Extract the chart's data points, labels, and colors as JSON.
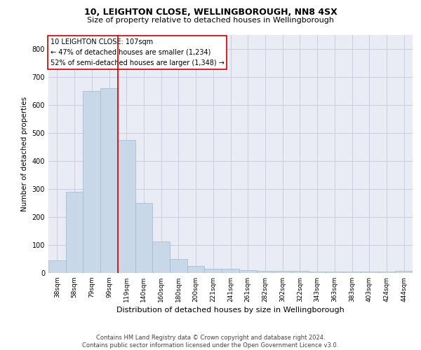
{
  "title1": "10, LEIGHTON CLOSE, WELLINGBOROUGH, NN8 4SX",
  "title2": "Size of property relative to detached houses in Wellingborough",
  "xlabel": "Distribution of detached houses by size in Wellingborough",
  "ylabel": "Number of detached properties",
  "categories": [
    "38sqm",
    "58sqm",
    "79sqm",
    "99sqm",
    "119sqm",
    "140sqm",
    "160sqm",
    "180sqm",
    "200sqm",
    "221sqm",
    "241sqm",
    "261sqm",
    "282sqm",
    "302sqm",
    "322sqm",
    "343sqm",
    "363sqm",
    "383sqm",
    "403sqm",
    "424sqm",
    "444sqm"
  ],
  "values": [
    45,
    290,
    650,
    660,
    475,
    250,
    112,
    50,
    25,
    15,
    15,
    10,
    8,
    8,
    8,
    5,
    5,
    5,
    5,
    5,
    8
  ],
  "bar_color": "#c8d8e8",
  "bar_edgecolor": "#a0b8cc",
  "bar_linewidth": 0.5,
  "vline_color": "#cc0000",
  "vline_pos": 3.5,
  "annotation_text": "10 LEIGHTON CLOSE: 107sqm\n← 47% of detached houses are smaller (1,234)\n52% of semi-detached houses are larger (1,348) →",
  "annotation_box_edgecolor": "#cc0000",
  "annotation_box_facecolor": "white",
  "ylim": [
    0,
    850
  ],
  "yticks": [
    0,
    100,
    200,
    300,
    400,
    500,
    600,
    700,
    800
  ],
  "grid_color": "#ccccdd",
  "background_color": "#eaecf5",
  "footer_line1": "Contains HM Land Registry data © Crown copyright and database right 2024.",
  "footer_line2": "Contains public sector information licensed under the Open Government Licence v3.0.",
  "title1_fontsize": 9,
  "title2_fontsize": 8,
  "xlabel_fontsize": 8,
  "ylabel_fontsize": 7.5,
  "tick_fontsize": 6.5,
  "ann_fontsize": 7,
  "footer_fontsize": 6
}
